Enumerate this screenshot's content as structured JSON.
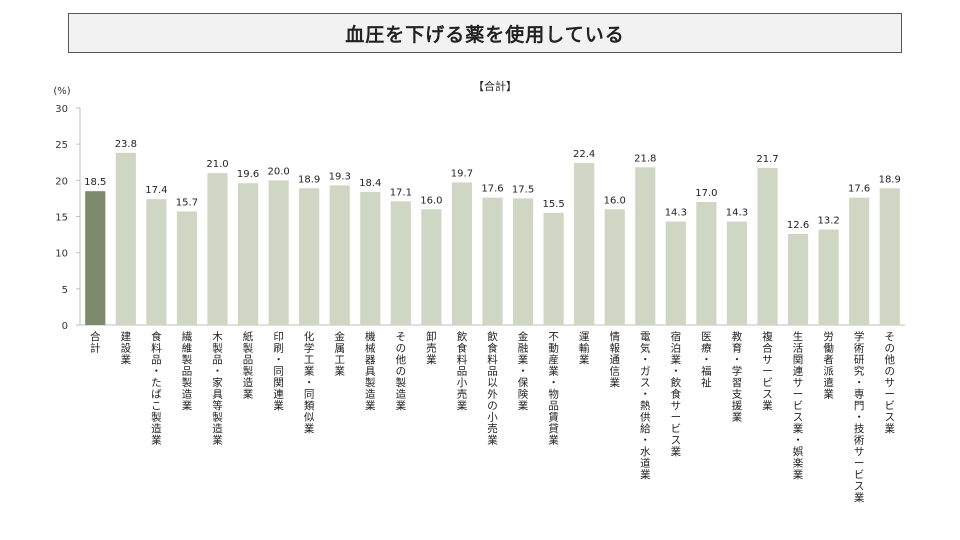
{
  "slide_title": "血圧を下げる薬を使用している",
  "chart_data": {
    "type": "bar",
    "title": "【合計】",
    "unit": "(%)",
    "ylim": [
      0,
      30
    ],
    "yticks": [
      0,
      5,
      10,
      15,
      20,
      25,
      30
    ],
    "grid": false,
    "colors": {
      "highlight": "#7d8b6c",
      "default": "#cfd6c3"
    },
    "categories": [
      "合計",
      "建設業",
      "食料品・たばこ製造業",
      "繊維製品製造業",
      "木製品・家具等製造業",
      "紙製品製造業",
      "印刷・同関連業",
      "化学工業・同類似業",
      "金属工業",
      "機械器具製造業",
      "その他の製造業",
      "卸売業",
      "飲食料品小売業",
      "飲食料品以外の小売業",
      "金融業・保険業",
      "不動産業・物品賃貸業",
      "運輸業",
      "情報通信業",
      "電気・ガス・熱供給・水道業",
      "宿泊業・飲食サービス業",
      "医療・福祉",
      "教育・学習支援業",
      "複合サービス業",
      "生活関連サービス業・娯楽業",
      "労働者派遣業",
      "学術研究・専門・技術サービス業",
      "その他のサービス業"
    ],
    "values": [
      18.5,
      23.8,
      17.4,
      15.7,
      21.0,
      19.6,
      20.0,
      18.9,
      19.3,
      18.4,
      17.1,
      16.0,
      19.7,
      17.6,
      17.5,
      15.5,
      22.4,
      16.0,
      21.8,
      14.3,
      17.0,
      14.3,
      21.7,
      12.6,
      13.2,
      17.6,
      18.9
    ],
    "value_labels": [
      "18.5",
      "23.8",
      "17.4",
      "15.7",
      "21.0",
      "19.6",
      "20.0",
      "18.9",
      "19.3",
      "18.4",
      "17.1",
      "16.0",
      "19.7",
      "17.6",
      "17.5",
      "15.5",
      "22.4",
      "16.0",
      "21.8",
      "14.3",
      "17.0",
      "14.3",
      "21.7",
      "12.6",
      "13.2",
      "17.6",
      "18.9"
    ],
    "highlight_index": 0
  }
}
